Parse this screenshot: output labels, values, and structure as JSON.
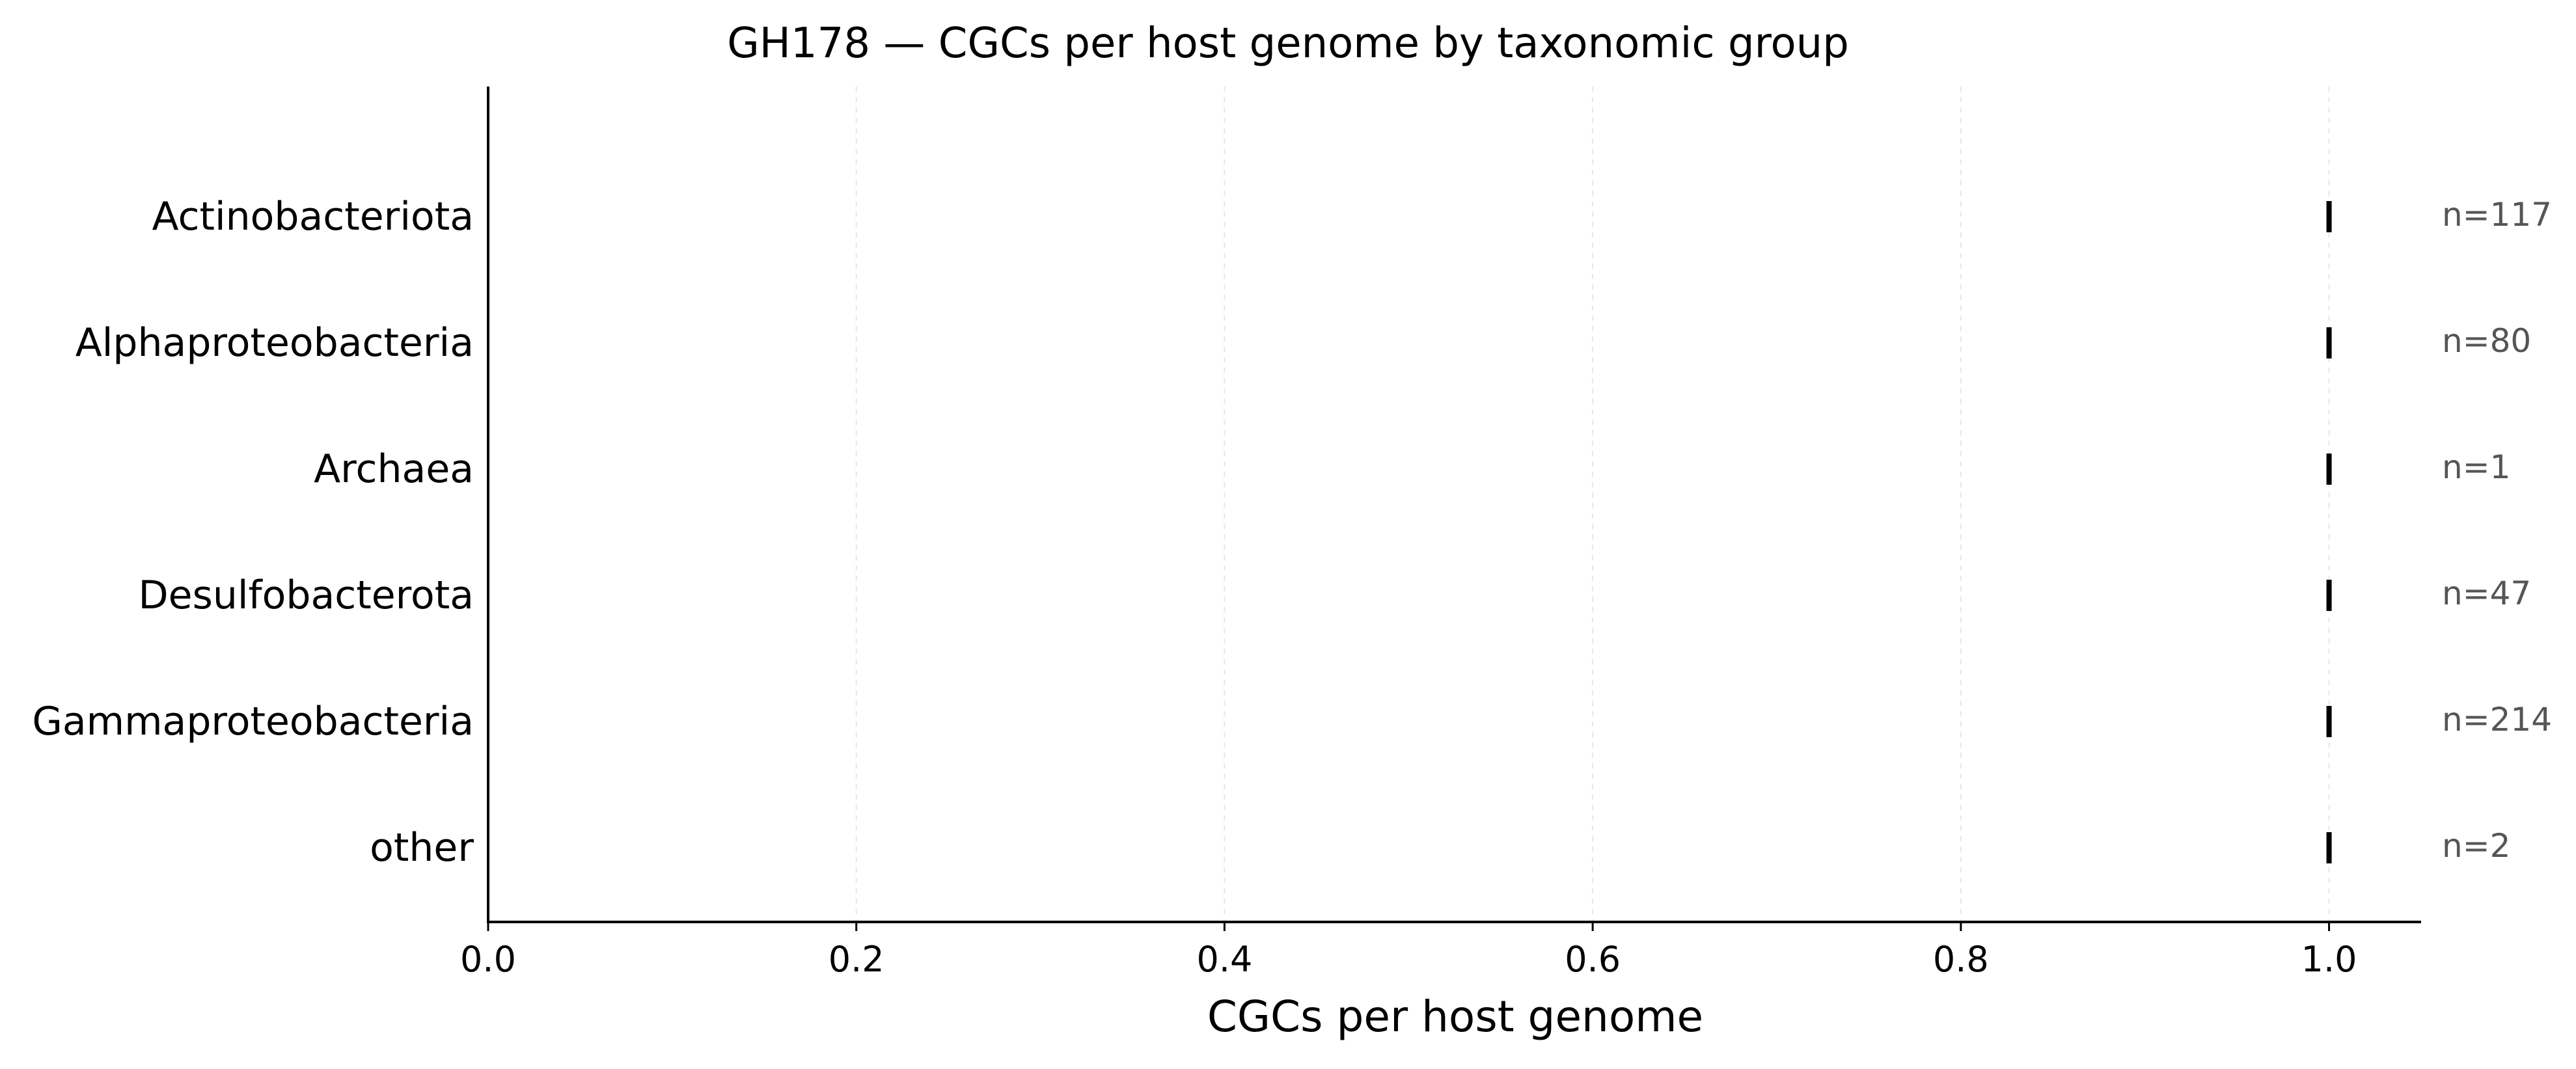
{
  "chart_data": {
    "type": "strip",
    "title": "GH178 — CGCs per host genome by taxonomic group",
    "xlabel": "CGCs per host genome",
    "ylabel": "",
    "xlim": [
      0.0,
      1.05
    ],
    "x_ticks": [
      "0.0",
      "0.2",
      "0.4",
      "0.6",
      "0.8",
      "1.0"
    ],
    "x_tick_values": [
      0.0,
      0.2,
      0.4,
      0.6,
      0.8,
      1.0
    ],
    "grid": "vertical dashed",
    "categories": [
      "Actinobacteriota",
      "Alphaproteobacteria",
      "Archaea",
      "Desulfobacterota",
      "Gammaproteobacteria",
      "other"
    ],
    "values": [
      1.0,
      1.0,
      1.0,
      1.0,
      1.0,
      1.0
    ],
    "n_labels": [
      "n=117",
      "n=80",
      "n=1",
      "n=47",
      "n=214",
      "n=2"
    ],
    "colors": {
      "marker": "#000000",
      "axis": "#000000",
      "grid": "#e6e6e6",
      "annotation": "#555555"
    }
  }
}
